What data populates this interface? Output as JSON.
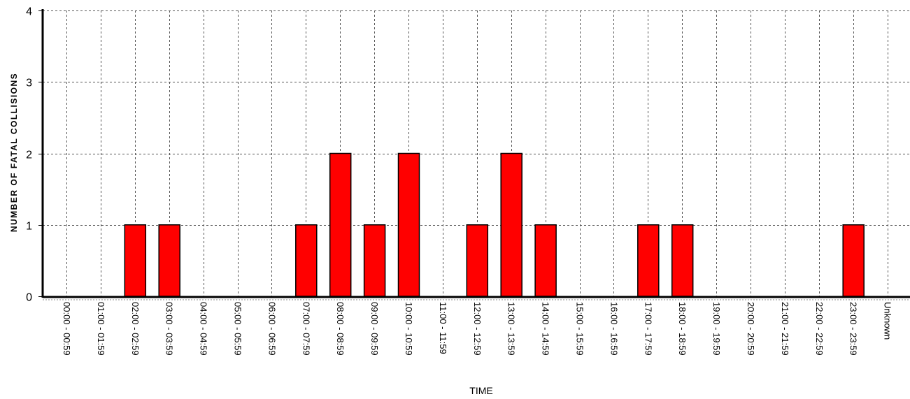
{
  "chart_data": {
    "type": "bar",
    "title": "",
    "xlabel": "TIME",
    "ylabel": "NUMBER OF FATAL COLLISIONS",
    "ylim": [
      0,
      4
    ],
    "yticks": [
      "0",
      "1",
      "2",
      "3",
      "4"
    ],
    "grid": true,
    "bar_color": "#ff0000",
    "categories": [
      "00:00 - 00:59",
      "01:00 - 01:59",
      "02:00 - 02:59",
      "03:00 - 03:59",
      "04:00 - 04:59",
      "05:00 - 05:59",
      "06:00 - 06:59",
      "07:00 - 07:59",
      "08:00 - 08:59",
      "09:00 - 09:59",
      "10:00 - 10:59",
      "11:00 - 11:59",
      "12:00 - 12:59",
      "13:00 - 13:59",
      "14:00 - 14:59",
      "15:00 - 15:59",
      "16:00 - 16:59",
      "17:00 - 17:59",
      "18:00 - 18:59",
      "19:00 - 19:59",
      "20:00 - 20:59",
      "21:00 - 21:59",
      "22:00 - 22:59",
      "23:00 - 23:59",
      "Unknown"
    ],
    "values": [
      0,
      0,
      1,
      1,
      0,
      0,
      0,
      1,
      2,
      1,
      2,
      0,
      1,
      2,
      1,
      0,
      0,
      1,
      1,
      0,
      0,
      0,
      0,
      1,
      0
    ]
  }
}
